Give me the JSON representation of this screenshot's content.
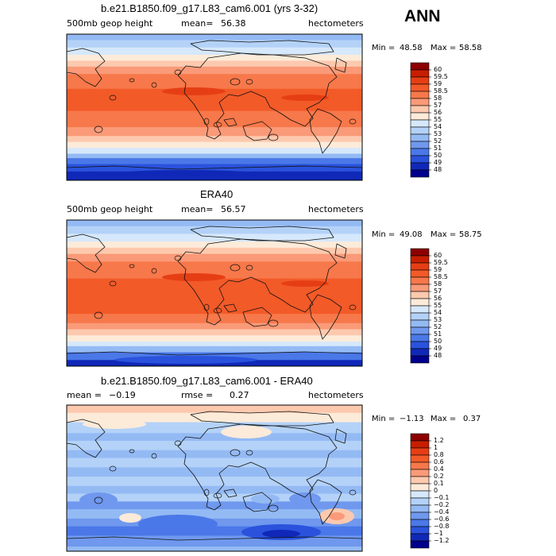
{
  "season": "ANN",
  "chart_data": [
    {
      "type": "heatmap",
      "title": "b.e21.B1850.f09_g17.L83_cam6.001 (yrs 3-32)",
      "variable": "500mb geop height",
      "mean_label": "mean=",
      "mean_value": "56.38",
      "units": "hectometers",
      "min_label": "Min =",
      "min_value": "48.58",
      "max_label": "Max =",
      "max_value": "58.58",
      "contour_levels": [
        "60",
        "59.5",
        "59",
        "58.5",
        "58",
        "57",
        "56",
        "55",
        "54",
        "53",
        "52",
        "51",
        "50",
        "49",
        "48"
      ],
      "colorbar_colors": [
        "#8c0000",
        "#c81e00",
        "#e63e14",
        "#f25a28",
        "#f7784a",
        "#fa9a78",
        "#fdc9ae",
        "#fdebd9",
        "#d6e8fb",
        "#b4d2f8",
        "#94baf4",
        "#6f98ee",
        "#4a78e8",
        "#2a52dc",
        "#1028b8",
        "#00008c"
      ]
    },
    {
      "type": "heatmap",
      "title": "ERA40",
      "variable": "500mb geop height",
      "mean_label": "mean=",
      "mean_value": "56.57",
      "units": "hectometers",
      "min_label": "Min =",
      "min_value": "49.08",
      "max_label": "Max =",
      "max_value": "58.75",
      "contour_levels": [
        "60",
        "59.5",
        "59",
        "58.5",
        "58",
        "57",
        "56",
        "55",
        "54",
        "53",
        "52",
        "51",
        "50",
        "49",
        "48"
      ],
      "colorbar_colors": [
        "#8c0000",
        "#c81e00",
        "#e63e14",
        "#f25a28",
        "#f7784a",
        "#fa9a78",
        "#fdc9ae",
        "#fdebd9",
        "#d6e8fb",
        "#b4d2f8",
        "#94baf4",
        "#6f98ee",
        "#4a78e8",
        "#2a52dc",
        "#1028b8",
        "#00008c"
      ]
    },
    {
      "type": "heatmap",
      "title": "b.e21.B1850.f09_g17.L83_cam6.001 - ERA40",
      "mean_label": "mean =",
      "mean_value": "−0.19",
      "rmse_label": "rmse =",
      "rmse_value": "0.27",
      "units": "hectometers",
      "min_label": "Min =",
      "min_value": "−1.13",
      "max_label": "Max =",
      "max_value": "0.37",
      "contour_levels": [
        "1.2",
        "1",
        "0.8",
        "0.6",
        "0.4",
        "0.2",
        "0.1",
        "0",
        "−0.1",
        "−0.2",
        "−0.4",
        "−0.6",
        "−0.8",
        "−1",
        "−1.2"
      ],
      "colorbar_colors": [
        "#8c0000",
        "#c81e00",
        "#e63e14",
        "#f25a28",
        "#f7784a",
        "#fa9a78",
        "#fdc9ae",
        "#fdebd9",
        "#d6e8fb",
        "#b4d2f8",
        "#94baf4",
        "#6f98ee",
        "#4a78e8",
        "#2a52dc",
        "#1028b8",
        "#00008c"
      ]
    }
  ]
}
